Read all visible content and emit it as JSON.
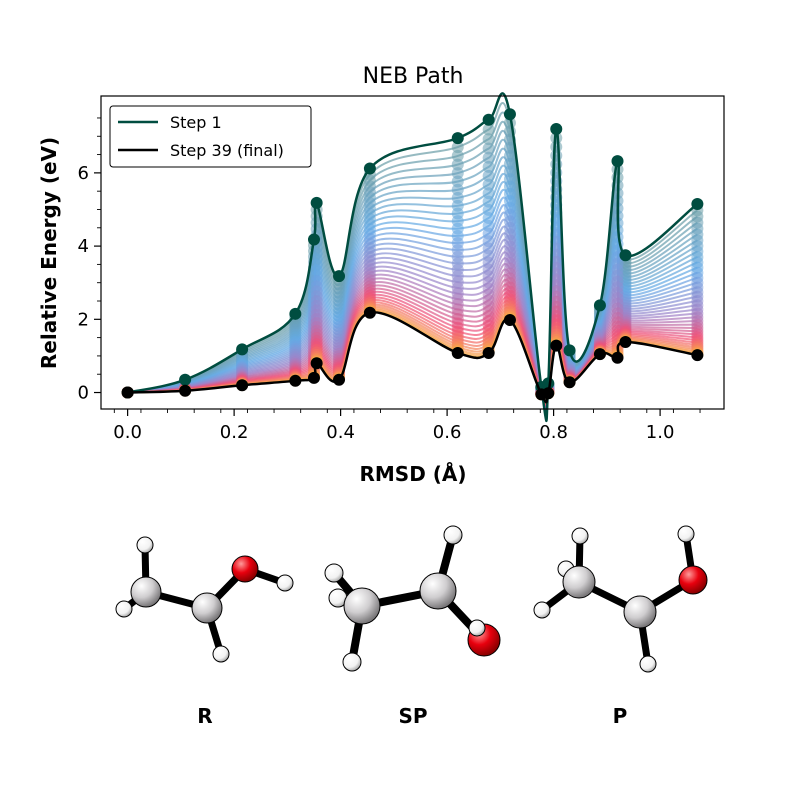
{
  "chart_data": {
    "type": "line",
    "title": "NEB Path",
    "xlabel": "RMSD (Å)",
    "ylabel": "Relative Energy (eV)",
    "xlim": [
      -0.05,
      1.12
    ],
    "ylim": [
      -0.45,
      8.1
    ],
    "xticks": [
      "0.0",
      "0.2",
      "0.4",
      "0.6",
      "0.8",
      "1.0"
    ],
    "xtick_values": [
      0.0,
      0.2,
      0.4,
      0.6,
      0.8,
      1.0
    ],
    "yticks": [
      "0",
      "2",
      "4",
      "6"
    ],
    "ytick_values": [
      0,
      2,
      4,
      6
    ],
    "legend_position": "top-left",
    "grid": false,
    "first_step": {
      "name": "Step 1",
      "color": "#004d40",
      "x": [
        0.0,
        0.108,
        0.215,
        0.315,
        0.35,
        0.355,
        0.397,
        0.455,
        0.62,
        0.678,
        0.718,
        0.777,
        0.79,
        0.805,
        0.83,
        0.887,
        0.92,
        0.935,
        1.07
      ],
      "y": [
        0.0,
        0.35,
        1.18,
        2.15,
        4.18,
        5.18,
        3.18,
        6.12,
        6.95,
        7.45,
        7.6,
        0.15,
        0.25,
        7.2,
        1.15,
        2.38,
        6.32,
        3.75,
        5.15
      ]
    },
    "final_step": {
      "name": "Step 39 (final)",
      "color": "#000000",
      "x": [
        0.0,
        0.108,
        0.215,
        0.315,
        0.35,
        0.355,
        0.397,
        0.455,
        0.62,
        0.678,
        0.718,
        0.777,
        0.79,
        0.805,
        0.83,
        0.887,
        0.92,
        0.935,
        1.07
      ],
      "y": [
        0.0,
        0.05,
        0.2,
        0.32,
        0.4,
        0.8,
        0.35,
        2.18,
        1.08,
        1.08,
        1.98,
        -0.05,
        -0.02,
        1.28,
        0.28,
        1.05,
        0.95,
        1.38,
        1.02
      ]
    },
    "intermediate_steps": 37
  },
  "structures": {
    "labels": [
      "R",
      "SP",
      "P"
    ],
    "atom_colors": {
      "carbon": "#c8c6c8",
      "oxygen": "#e8000e",
      "hydrogen": "#ffffff",
      "bond": "#000000"
    }
  }
}
